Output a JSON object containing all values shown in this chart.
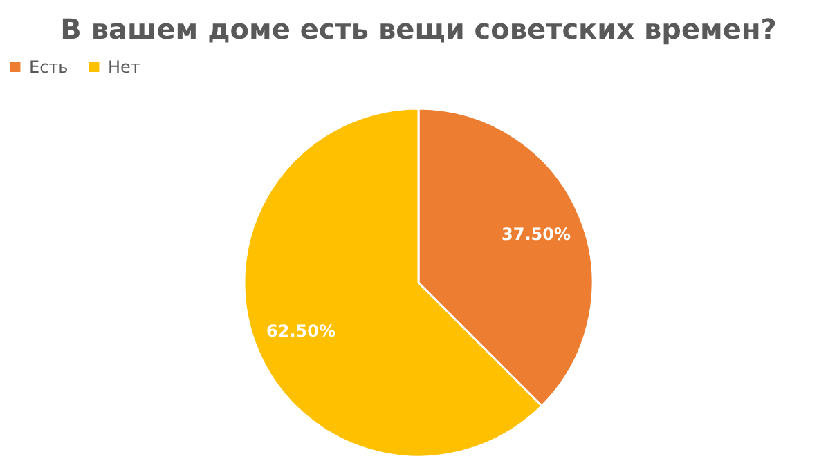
{
  "chart_data": {
    "type": "pie",
    "title": "В вашем доме есть вещи советских времен?",
    "categories": [
      "Есть",
      "Нет"
    ],
    "values": [
      37.5,
      62.5
    ],
    "colors": [
      "#ed7d31",
      "#ffc000"
    ],
    "value_labels": [
      "37.50%",
      "62.50%"
    ],
    "legend": "top"
  }
}
